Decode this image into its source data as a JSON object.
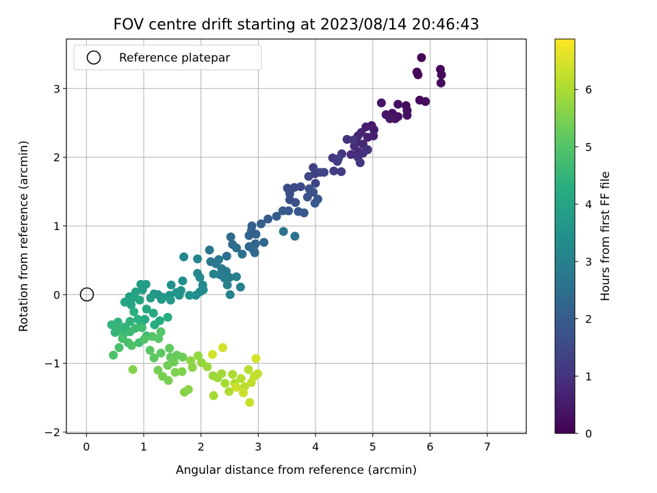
{
  "chart_data": {
    "type": "scatter",
    "title": "FOV centre drift starting at 2023/08/14 20:46:43",
    "xlabel": "Angular distance from reference (arcmin)",
    "ylabel": "Rotation from reference (arcmin)",
    "xlim": [
      -0.35,
      7.68
    ],
    "ylim": [
      -2.02,
      3.72
    ],
    "xticks": [
      "0",
      "1",
      "2",
      "3",
      "4",
      "5",
      "6",
      "7"
    ],
    "yticks": [
      "−2",
      "−1",
      "0",
      "1",
      "2",
      "3"
    ],
    "grid": true,
    "legend": {
      "placement": "top-left",
      "entries": [
        {
          "label": "Reference platepar",
          "marker": "open-circle"
        }
      ]
    },
    "reference_point": {
      "x": 0,
      "y": 0
    },
    "colorbar": {
      "label": "Hours from first FF file",
      "range": [
        0,
        6.88
      ],
      "ticks": [
        "0",
        "1",
        "2",
        "3",
        "4",
        "5",
        "6"
      ],
      "colormap": "viridis"
    },
    "points": [
      [
        5.85,
        3.45,
        0.03
      ],
      [
        5.77,
        3.24,
        0.06
      ],
      [
        5.79,
        3.2,
        0.09
      ],
      [
        6.18,
        3.28,
        0.11
      ],
      [
        6.2,
        3.2,
        0.13
      ],
      [
        6.19,
        3.08,
        0.15
      ],
      [
        5.82,
        2.83,
        0.18
      ],
      [
        5.92,
        2.81,
        0.2
      ],
      [
        5.58,
        2.75,
        0.23
      ],
      [
        5.6,
        2.68,
        0.25
      ],
      [
        5.44,
        2.77,
        0.28
      ],
      [
        5.34,
        2.64,
        0.3
      ],
      [
        5.44,
        2.59,
        0.33
      ],
      [
        5.6,
        2.61,
        0.35
      ],
      [
        5.39,
        2.56,
        0.37
      ],
      [
        5.15,
        2.79,
        0.4
      ],
      [
        5.23,
        2.62,
        0.43
      ],
      [
        5.3,
        2.56,
        0.46
      ],
      [
        4.98,
        2.46,
        0.5
      ],
      [
        5.02,
        2.4,
        0.53
      ],
      [
        4.88,
        2.44,
        0.56
      ],
      [
        5.01,
        2.31,
        0.6
      ],
      [
        4.91,
        2.29,
        0.63
      ],
      [
        4.8,
        2.36,
        0.66
      ],
      [
        4.74,
        2.31,
        0.7
      ],
      [
        4.72,
        2.23,
        0.73
      ],
      [
        4.83,
        2.19,
        0.76
      ],
      [
        4.68,
        2.16,
        0.8
      ],
      [
        4.75,
        2.08,
        0.83
      ],
      [
        4.62,
        2.04,
        0.87
      ],
      [
        4.74,
        2.0,
        0.9
      ],
      [
        4.83,
        2.06,
        0.93
      ],
      [
        4.91,
        2.11,
        0.97
      ],
      [
        4.55,
        2.26,
        1.0
      ],
      [
        4.66,
        2.25,
        1.03
      ],
      [
        4.78,
        1.92,
        1.07
      ],
      [
        4.46,
        2.05,
        1.1
      ],
      [
        4.3,
        1.99,
        1.13
      ],
      [
        4.38,
        1.94,
        1.17
      ],
      [
        4.32,
        1.8,
        1.2
      ],
      [
        4.45,
        1.79,
        1.23
      ],
      [
        4.4,
        1.98,
        1.27
      ],
      [
        3.96,
        1.85,
        1.3
      ],
      [
        3.99,
        1.76,
        1.33
      ],
      [
        4.08,
        1.78,
        1.37
      ],
      [
        4.15,
        1.78,
        1.4
      ],
      [
        4.0,
        1.62,
        1.43
      ],
      [
        3.88,
        1.72,
        1.47
      ],
      [
        3.74,
        1.57,
        1.5
      ],
      [
        3.63,
        1.56,
        1.53
      ],
      [
        3.51,
        1.55,
        1.57
      ],
      [
        3.55,
        1.47,
        1.6
      ],
      [
        3.55,
        1.38,
        1.63
      ],
      [
        3.65,
        1.34,
        1.67
      ],
      [
        3.89,
        1.54,
        1.7
      ],
      [
        3.86,
        1.42,
        1.73
      ],
      [
        3.96,
        1.49,
        1.77
      ],
      [
        4.04,
        1.39,
        1.8
      ],
      [
        3.7,
        1.21,
        1.83
      ],
      [
        3.8,
        1.19,
        1.87
      ],
      [
        3.99,
        1.33,
        1.9
      ],
      [
        3.53,
        1.22,
        1.93
      ],
      [
        3.43,
        1.22,
        1.96
      ],
      [
        3.32,
        1.14,
        2.0
      ],
      [
        3.17,
        1.1,
        2.03
      ],
      [
        3.05,
        1.03,
        2.06
      ],
      [
        2.89,
        1.0,
        2.1
      ],
      [
        2.88,
        0.93,
        2.13
      ],
      [
        2.96,
        0.88,
        2.16
      ],
      [
        2.84,
        0.86,
        2.2
      ],
      [
        2.95,
        0.74,
        2.23
      ],
      [
        3.1,
        0.76,
        2.26
      ],
      [
        2.84,
        0.7,
        2.3
      ],
      [
        2.91,
        0.66,
        2.33
      ],
      [
        2.94,
        0.61,
        2.36
      ],
      [
        2.52,
        0.84,
        2.4
      ],
      [
        2.55,
        0.73,
        2.43
      ],
      [
        2.62,
        0.68,
        2.46
      ],
      [
        2.45,
        0.56,
        2.5
      ],
      [
        2.72,
        0.59,
        2.53
      ],
      [
        3.44,
        0.92,
        2.56
      ],
      [
        3.64,
        0.85,
        2.6
      ],
      [
        2.15,
        0.65,
        2.63
      ],
      [
        2.17,
        0.48,
        2.66
      ],
      [
        2.31,
        0.51,
        2.7
      ],
      [
        2.26,
        0.45,
        2.73
      ],
      [
        2.36,
        0.38,
        2.76
      ],
      [
        2.44,
        0.34,
        2.8
      ],
      [
        2.5,
        0.25,
        2.83
      ],
      [
        2.33,
        0.29,
        2.86
      ],
      [
        2.41,
        0.24,
        2.9
      ],
      [
        2.62,
        0.26,
        2.93
      ],
      [
        2.69,
        0.11,
        2.96
      ],
      [
        2.46,
        0.14,
        3.0
      ],
      [
        2.51,
        0.0,
        3.03
      ],
      [
        2.22,
        0.3,
        3.06
      ],
      [
        1.94,
        0.52,
        3.1
      ],
      [
        1.7,
        0.55,
        3.13
      ],
      [
        1.94,
        0.31,
        3.16
      ],
      [
        1.98,
        0.25,
        3.2
      ],
      [
        2.03,
        0.14,
        3.23
      ],
      [
        1.98,
        0.04,
        3.26
      ],
      [
        1.91,
        -0.01,
        3.3
      ],
      [
        2.04,
        0.07,
        3.33
      ],
      [
        1.68,
        0.2,
        3.36
      ],
      [
        1.48,
        0.14,
        3.4
      ],
      [
        1.65,
        0.06,
        3.43
      ],
      [
        1.8,
        -0.01,
        3.46
      ],
      [
        1.62,
        -0.01,
        3.5
      ],
      [
        1.57,
        0.03,
        3.53
      ],
      [
        1.45,
        -0.01,
        3.56
      ],
      [
        1.33,
        -0.04,
        3.6
      ],
      [
        1.25,
        0.0,
        3.63
      ],
      [
        1.31,
        -0.07,
        3.66
      ],
      [
        1.47,
        -0.08,
        3.7
      ],
      [
        1.18,
        0.01,
        3.73
      ],
      [
        1.12,
        -0.05,
        3.76
      ],
      [
        1.04,
        0.15,
        3.8
      ],
      [
        0.95,
        0.15,
        3.83
      ],
      [
        0.98,
        0.07,
        3.86
      ],
      [
        0.86,
        0.04,
        3.9
      ],
      [
        0.75,
        -0.03,
        3.93
      ],
      [
        0.84,
        -0.04,
        3.96
      ],
      [
        0.67,
        -0.11,
        4.0
      ],
      [
        0.78,
        -0.15,
        4.03
      ],
      [
        0.93,
        -0.08,
        4.06
      ],
      [
        1.05,
        -0.21,
        4.1
      ],
      [
        1.17,
        -0.27,
        4.13
      ],
      [
        1.02,
        -0.36,
        4.16
      ],
      [
        1.19,
        -0.44,
        4.2
      ],
      [
        1.28,
        -0.38,
        4.23
      ],
      [
        1.42,
        -0.33,
        4.26
      ],
      [
        0.96,
        -0.44,
        4.3
      ],
      [
        0.9,
        -0.36,
        4.33
      ],
      [
        0.83,
        -0.25,
        4.36
      ],
      [
        0.76,
        -0.39,
        4.4
      ],
      [
        0.68,
        -0.47,
        4.43
      ],
      [
        0.55,
        -0.4,
        4.46
      ],
      [
        0.44,
        -0.44,
        4.5
      ],
      [
        0.5,
        -0.55,
        4.53
      ],
      [
        0.56,
        -0.5,
        4.56
      ],
      [
        0.64,
        -0.59,
        4.6
      ],
      [
        0.76,
        -0.54,
        4.63
      ],
      [
        0.85,
        -0.49,
        4.66
      ],
      [
        0.97,
        -0.48,
        4.7
      ],
      [
        1.05,
        -0.6,
        4.73
      ],
      [
        0.92,
        -0.7,
        4.76
      ],
      [
        0.73,
        -0.7,
        4.8
      ],
      [
        0.63,
        -0.64,
        4.83
      ],
      [
        0.57,
        -0.77,
        4.86
      ],
      [
        0.47,
        -0.88,
        4.9
      ],
      [
        0.79,
        -0.74,
        4.93
      ],
      [
        1.01,
        -0.65,
        4.96
      ],
      [
        1.15,
        -0.61,
        5.0
      ],
      [
        1.3,
        -0.54,
        5.03
      ],
      [
        1.26,
        -0.64,
        5.06
      ],
      [
        1.11,
        -0.81,
        5.1
      ],
      [
        1.18,
        -0.92,
        5.13
      ],
      [
        1.3,
        -0.85,
        5.16
      ],
      [
        1.45,
        -0.78,
        5.2
      ],
      [
        1.47,
        -0.91,
        5.23
      ],
      [
        1.58,
        -0.88,
        5.26
      ],
      [
        1.68,
        -0.91,
        5.3
      ],
      [
        1.53,
        -0.98,
        5.33
      ],
      [
        1.42,
        -1.03,
        5.36
      ],
      [
        1.25,
        -1.1,
        5.4
      ],
      [
        1.33,
        -1.19,
        5.43
      ],
      [
        1.43,
        -1.25,
        5.46
      ],
      [
        1.55,
        -1.13,
        5.5
      ],
      [
        1.67,
        -1.12,
        5.53
      ],
      [
        0.81,
        -1.09,
        5.56
      ],
      [
        1.71,
        -1.42,
        5.6
      ],
      [
        1.78,
        -1.38,
        5.63
      ],
      [
        1.85,
        -1.06,
        5.66
      ],
      [
        1.82,
        -0.96,
        5.7
      ],
      [
        1.95,
        -0.89,
        5.73
      ],
      [
        2.01,
        -0.99,
        5.76
      ],
      [
        2.11,
        -1.05,
        5.8
      ],
      [
        2.21,
        -1.18,
        5.83
      ],
      [
        2.29,
        -1.21,
        5.86
      ],
      [
        2.36,
        -1.15,
        5.9
      ],
      [
        2.22,
        -1.47,
        5.93
      ],
      [
        2.42,
        -1.29,
        5.96
      ],
      [
        2.55,
        -1.16,
        6.0
      ],
      [
        2.49,
        -1.41,
        6.03
      ],
      [
        2.59,
        -1.29,
        6.06
      ],
      [
        2.7,
        -1.22,
        6.1
      ],
      [
        2.83,
        -1.09,
        6.13
      ],
      [
        2.76,
        -1.34,
        6.16
      ],
      [
        2.88,
        -1.28,
        6.2
      ],
      [
        2.93,
        -1.19,
        6.23
      ],
      [
        2.99,
        -1.15,
        6.26
      ],
      [
        2.85,
        -1.57,
        6.3
      ],
      [
        2.74,
        -1.43,
        6.33
      ],
      [
        2.62,
        -1.35,
        6.36
      ],
      [
        2.38,
        -0.77,
        6.4
      ],
      [
        2.2,
        -0.87,
        6.43
      ],
      [
        2.96,
        -0.93,
        6.46
      ]
    ]
  }
}
